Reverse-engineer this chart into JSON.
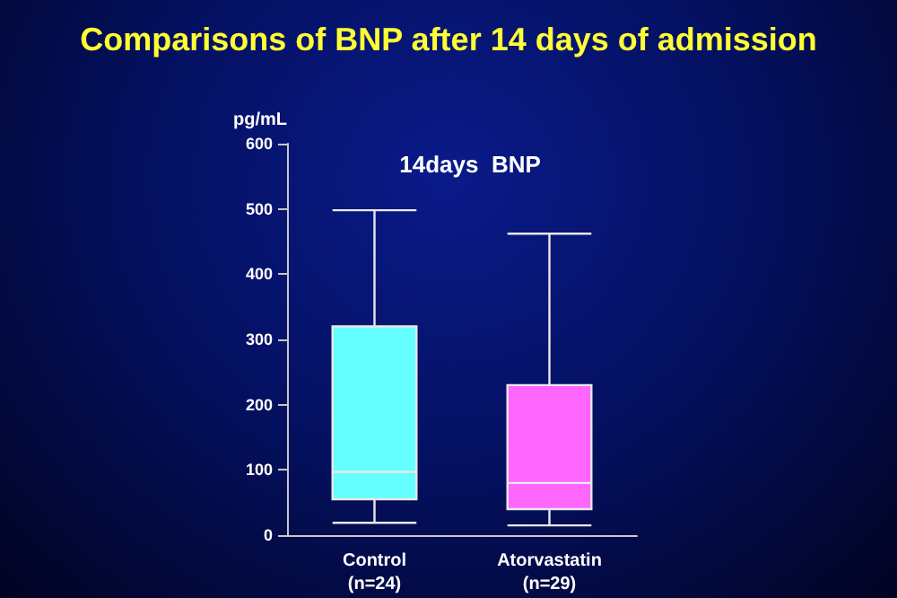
{
  "chart_data": {
    "type": "box",
    "title": "Comparisons of BNP after 14 days of admission",
    "subtitle": "14days  BNP",
    "ylabel": "pg/mL",
    "categories": [
      "Control\n(n=24)",
      "Atorvastatin\n(n=29)"
    ],
    "colors": [
      "#66ffff",
      "#ff66ff"
    ],
    "boxes": [
      {
        "low": 19,
        "q1": 55,
        "median": 97,
        "q3": 320,
        "high": 498
      },
      {
        "low": 15,
        "q1": 40,
        "median": 80,
        "q3": 230,
        "high": 462
      }
    ],
    "ylim": [
      0,
      600
    ],
    "yticks": [
      0,
      100,
      200,
      300,
      400,
      500,
      600
    ]
  }
}
